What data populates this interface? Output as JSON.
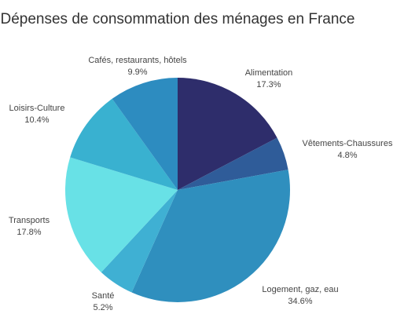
{
  "chart_data": {
    "type": "pie",
    "title": "Dépenses de consommation des ménages en France",
    "slices": [
      {
        "label": "Alimentation",
        "value": 17.3,
        "display": "17.3%",
        "color": "#2e2d6b"
      },
      {
        "label": "Vêtements-Chaussures",
        "value": 4.8,
        "display": "4.8%",
        "color": "#2f5c99"
      },
      {
        "label": "Logement, gaz, eau",
        "value": 34.6,
        "display": "34.6%",
        "color": "#2f8fbe"
      },
      {
        "label": "Santé",
        "value": 5.2,
        "display": "5.2%",
        "color": "#3fb0d3"
      },
      {
        "label": "Transports",
        "value": 17.8,
        "display": "17.8%",
        "color": "#68e1e6"
      },
      {
        "label": "Loisirs-Culture",
        "value": 10.4,
        "display": "10.4%",
        "color": "#39b1d0"
      },
      {
        "label": "Cafés, restaurants, hôtels",
        "value": 9.9,
        "display": "9.9%",
        "color": "#2d8cc0"
      }
    ]
  }
}
